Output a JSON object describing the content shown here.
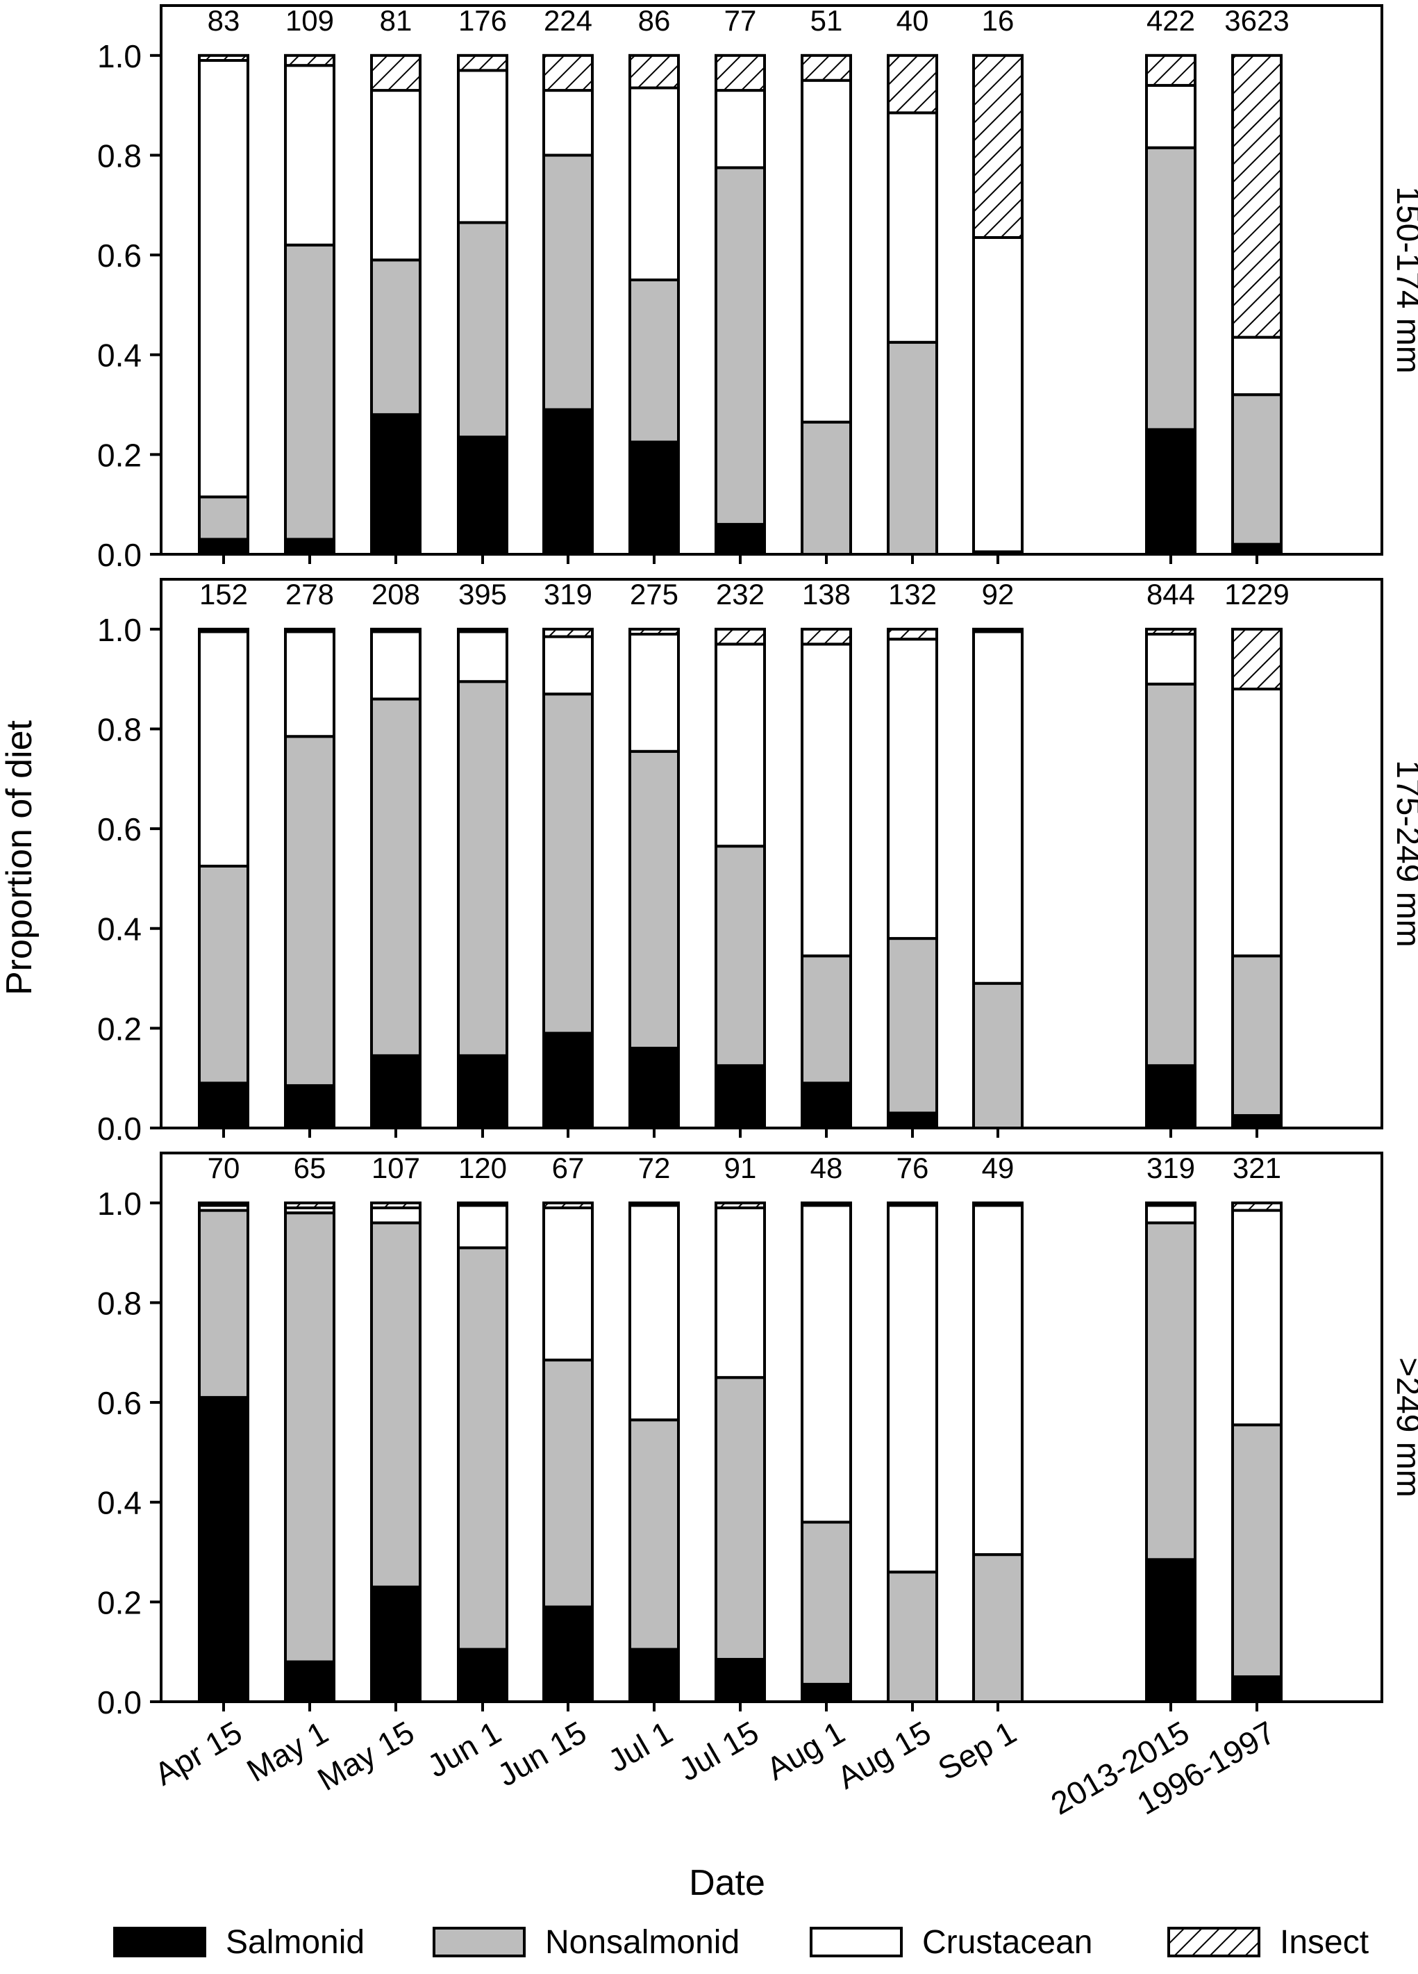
{
  "figure": {
    "ylabel": "Proportion of diet",
    "xlabel": "Date"
  },
  "chart_data": {
    "type": "bar",
    "stacked": true,
    "categories": [
      "Apr 15",
      "May 1",
      "May 15",
      "Jun 1",
      "Jun 15",
      "Jul 1",
      "Jul 15",
      "Aug 1",
      "Aug 15",
      "Sep 1",
      "2013-2015",
      "1996-1997"
    ],
    "ylim": [
      0,
      1.1
    ],
    "yticks": [
      "0.0",
      "0.2",
      "0.4",
      "0.6",
      "0.8",
      "1.0"
    ],
    "legend": {
      "position": "bottom",
      "items": [
        {
          "name": "Salmonid",
          "fill": "#000000"
        },
        {
          "name": "Nonsalmonid",
          "fill": "#bdbdbd"
        },
        {
          "name": "Crustacean",
          "fill": "#ffffff"
        },
        {
          "name": "Insect",
          "fill": "hatch"
        }
      ]
    },
    "panels": [
      {
        "label": "150-174 mm",
        "n": [
          "83",
          "109",
          "81",
          "176",
          "224",
          "86",
          "77",
          "51",
          "40",
          "16",
          "422",
          "3623"
        ],
        "series": [
          {
            "name": "Salmonid",
            "values": [
              0.03,
              0.03,
              0.28,
              0.235,
              0.29,
              0.225,
              0.06,
              0.0,
              0.0,
              0.0,
              0.25,
              0.02
            ]
          },
          {
            "name": "Nonsalmonid",
            "values": [
              0.085,
              0.59,
              0.31,
              0.43,
              0.51,
              0.325,
              0.715,
              0.265,
              0.425,
              0.005,
              0.565,
              0.3
            ]
          },
          {
            "name": "Crustacean",
            "values": [
              0.875,
              0.36,
              0.34,
              0.305,
              0.13,
              0.385,
              0.155,
              0.685,
              0.46,
              0.63,
              0.125,
              0.115
            ]
          },
          {
            "name": "Insect",
            "values": [
              0.01,
              0.02,
              0.07,
              0.03,
              0.07,
              0.065,
              0.07,
              0.05,
              0.115,
              0.365,
              0.06,
              0.565
            ]
          }
        ]
      },
      {
        "label": "175-249 mm",
        "n": [
          "152",
          "278",
          "208",
          "395",
          "319",
          "275",
          "232",
          "138",
          "132",
          "92",
          "844",
          "1229"
        ],
        "series": [
          {
            "name": "Salmonid",
            "values": [
              0.09,
              0.085,
              0.145,
              0.145,
              0.19,
              0.16,
              0.125,
              0.09,
              0.03,
              0.0,
              0.125,
              0.025
            ]
          },
          {
            "name": "Nonsalmonid",
            "values": [
              0.435,
              0.7,
              0.715,
              0.75,
              0.68,
              0.595,
              0.44,
              0.255,
              0.35,
              0.29,
              0.765,
              0.32
            ]
          },
          {
            "name": "Crustacean",
            "values": [
              0.47,
              0.21,
              0.135,
              0.1,
              0.115,
              0.235,
              0.405,
              0.625,
              0.6,
              0.705,
              0.1,
              0.535
            ]
          },
          {
            "name": "Insect",
            "values": [
              0.005,
              0.005,
              0.005,
              0.005,
              0.015,
              0.01,
              0.03,
              0.03,
              0.02,
              0.005,
              0.01,
              0.12
            ]
          }
        ]
      },
      {
        "label": ">249 mm",
        "n": [
          "70",
          "65",
          "107",
          "120",
          "67",
          "72",
          "91",
          "48",
          "76",
          "49",
          "319",
          "321"
        ],
        "series": [
          {
            "name": "Salmonid",
            "values": [
              0.61,
              0.08,
              0.23,
              0.105,
              0.19,
              0.105,
              0.085,
              0.035,
              0.0,
              0.0,
              0.285,
              0.05
            ]
          },
          {
            "name": "Nonsalmonid",
            "values": [
              0.375,
              0.9,
              0.73,
              0.805,
              0.495,
              0.46,
              0.565,
              0.325,
              0.26,
              0.295,
              0.675,
              0.505
            ]
          },
          {
            "name": "Crustacean",
            "values": [
              0.01,
              0.01,
              0.03,
              0.085,
              0.305,
              0.43,
              0.34,
              0.635,
              0.735,
              0.7,
              0.035,
              0.43
            ]
          },
          {
            "name": "Insect",
            "values": [
              0.005,
              0.01,
              0.01,
              0.005,
              0.01,
              0.005,
              0.01,
              0.005,
              0.005,
              0.005,
              0.005,
              0.015
            ]
          }
        ]
      }
    ]
  }
}
